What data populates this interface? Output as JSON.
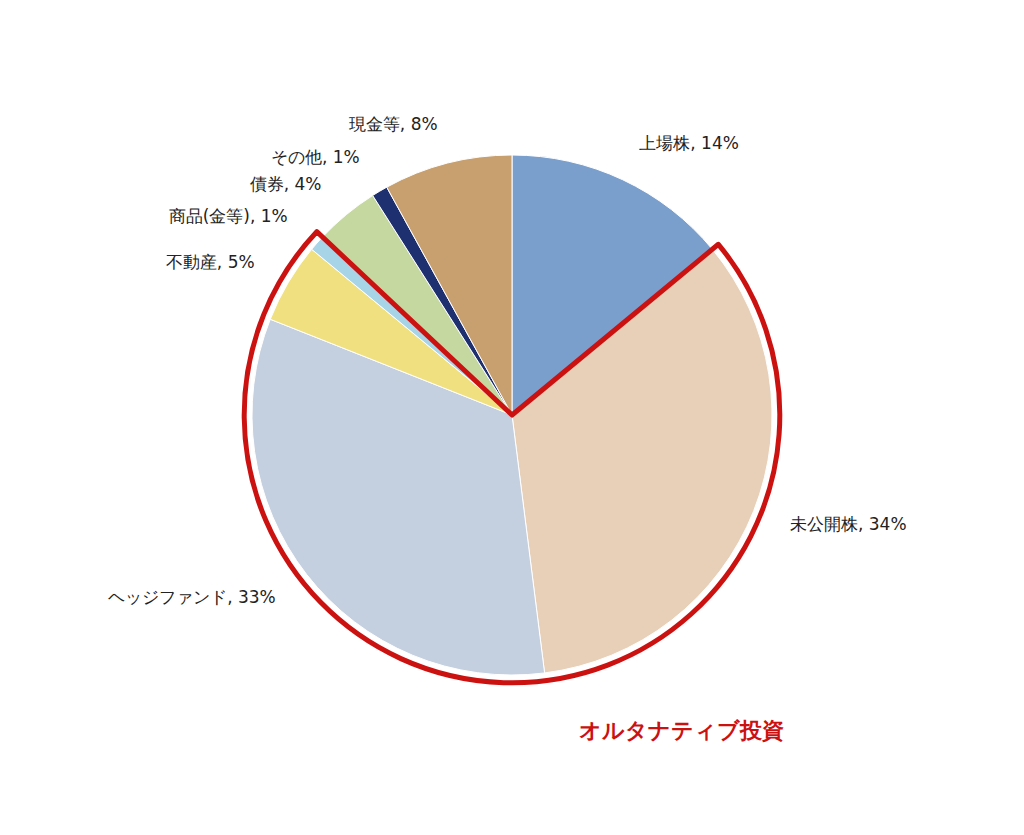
{
  "chart_data": {
    "type": "pie",
    "values": [
      14,
      34,
      33,
      5,
      1,
      4,
      1,
      8
    ],
    "value_labels": [
      "上場株, 14%",
      "未公開株, 34%",
      "ヘッジファンド, 33%",
      "不動産, 5%",
      "商品(金等), 1%",
      "債券, 4%",
      "その他, 1%",
      "現金等, 8%"
    ],
    "colors": [
      "#7b9fcc",
      "#e8d0b8",
      "#c4cfdf",
      "#f0e080",
      "#a8d4e8",
      "#c5d8a0",
      "#1e3070",
      "#c8a070"
    ],
    "data_labels": true,
    "annotations": [
      {
        "text": "オルタナティブ投資",
        "color": "#cc1111",
        "slices": [
          1,
          2,
          3,
          4
        ]
      }
    ]
  }
}
